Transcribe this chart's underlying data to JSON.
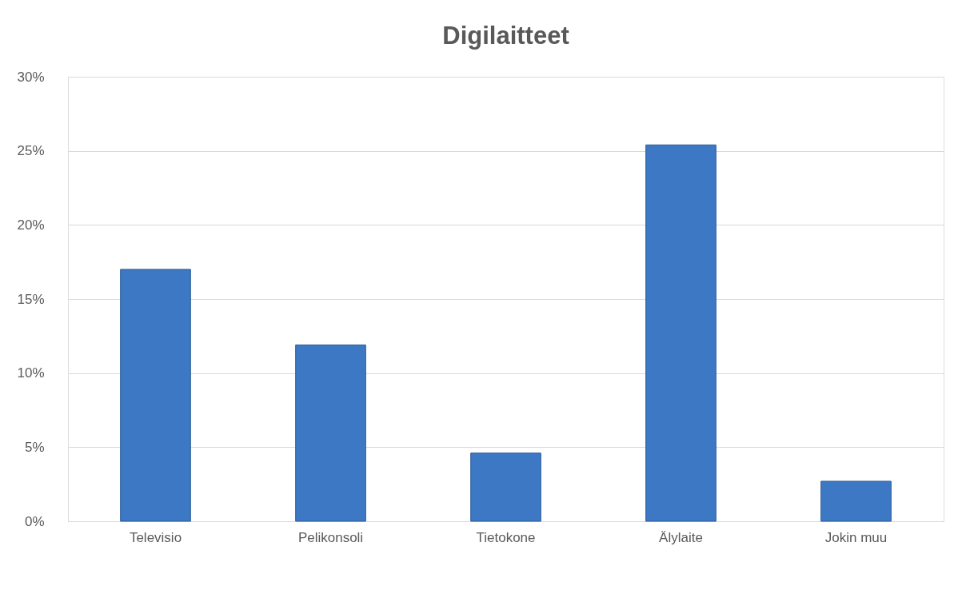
{
  "chart_data": {
    "type": "bar",
    "title": "Digilaitteet",
    "categories": [
      "Televisio",
      "Pelikonsoli",
      "Tietokone",
      "Älylaite",
      "Jokin muu"
    ],
    "values": [
      17.0,
      11.9,
      4.6,
      25.4,
      2.7
    ],
    "color": "#3d78c4",
    "ylim": [
      0,
      30
    ],
    "yticks": [
      {
        "value": 0,
        "label": "0%"
      },
      {
        "value": 5,
        "label": "5%"
      },
      {
        "value": 10,
        "label": "10%"
      },
      {
        "value": 15,
        "label": "15%"
      },
      {
        "value": 20,
        "label": "20%"
      },
      {
        "value": 25,
        "label": "25%"
      },
      {
        "value": 30,
        "label": "30%"
      }
    ],
    "grid": "y"
  }
}
